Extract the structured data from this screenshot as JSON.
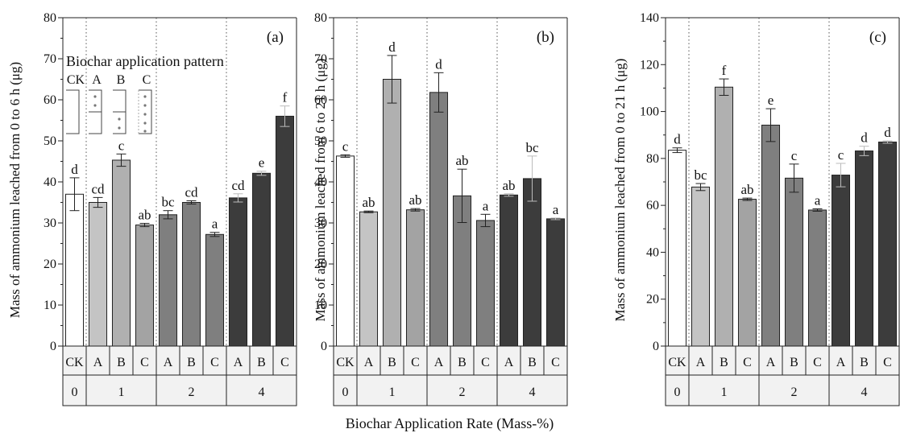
{
  "figure": {
    "xlabel": "Biochar Application Rate (Mass-%)"
  },
  "legend": {
    "title": "Biochar application pattern",
    "labels": [
      "CK",
      "A",
      "B",
      "C"
    ]
  },
  "colors": {
    "CK": "#ffffff",
    "A": "#c4c4c4",
    "B": "#b0b0b0",
    "C": "#a3a3a3",
    "rate2": "#7f7f7f",
    "rate4": "#3c3c3c",
    "table_bg": "#f2f2f2"
  },
  "chart_data": [
    {
      "type": "bar",
      "panel": "(a)",
      "ylabel": "Mass of ammonium leached from 0 to 6 h (μg)",
      "ylim": [
        0,
        80
      ],
      "yticks": [
        0,
        10,
        20,
        30,
        40,
        50,
        60,
        70,
        80
      ],
      "categories": [
        "CK",
        "A",
        "B",
        "C",
        "A",
        "B",
        "C",
        "A",
        "B",
        "C"
      ],
      "rates": [
        "0",
        "1",
        "1",
        "1",
        "2",
        "2",
        "2",
        "4",
        "4",
        "4"
      ],
      "rate_groups": [
        "0",
        "1",
        "2",
        "4"
      ],
      "values": [
        37,
        35,
        45.3,
        29.5,
        32,
        35,
        27.2,
        36.1,
        42.1,
        56
      ],
      "errors": [
        4,
        1.2,
        1.5,
        0.4,
        1.0,
        0.4,
        0.5,
        1.0,
        0.5,
        2.5
      ],
      "letters": [
        "d",
        "cd",
        "c",
        "ab",
        "bc",
        "cd",
        "a",
        "cd",
        "e",
        "f"
      ]
    },
    {
      "type": "bar",
      "panel": "(b)",
      "ylabel": "Mass of ammonium leached from 6 to 21 h (μg)",
      "ylim": [
        0,
        80
      ],
      "yticks": [
        0,
        10,
        20,
        30,
        40,
        50,
        60,
        70,
        80
      ],
      "categories": [
        "CK",
        "A",
        "B",
        "C",
        "A",
        "B",
        "C",
        "A",
        "B",
        "C"
      ],
      "rates": [
        "0",
        "1",
        "1",
        "1",
        "2",
        "2",
        "2",
        "4",
        "4",
        "4"
      ],
      "rate_groups": [
        "0",
        "1",
        "2",
        "4"
      ],
      "values": [
        46.3,
        32.7,
        65,
        33.2,
        61.8,
        36.6,
        30.6,
        36.8,
        40.8,
        31
      ],
      "errors": [
        0.3,
        0.2,
        5.8,
        0.3,
        4.8,
        6.5,
        1.5,
        0.3,
        5.5,
        0.2
      ],
      "letters": [
        "c",
        "ab",
        "d",
        "ab",
        "d",
        "ab",
        "a",
        "ab",
        "bc",
        "a"
      ]
    },
    {
      "type": "bar",
      "panel": "(c)",
      "ylabel": "Mass of ammonium leached from 0 to 21 h (μg)",
      "ylim": [
        0,
        140
      ],
      "yticks": [
        0,
        20,
        40,
        60,
        80,
        100,
        120,
        140
      ],
      "categories": [
        "CK",
        "A",
        "B",
        "C",
        "A",
        "B",
        "C",
        "A",
        "B",
        "C"
      ],
      "rates": [
        "0",
        "1",
        "1",
        "1",
        "2",
        "2",
        "2",
        "4",
        "4",
        "4"
      ],
      "rate_groups": [
        "0",
        "1",
        "2",
        "4"
      ],
      "values": [
        83.5,
        67.8,
        110.4,
        62.6,
        94.2,
        71.6,
        58,
        72.9,
        83.2,
        87
      ],
      "errors": [
        1.0,
        1.5,
        3.5,
        0.5,
        7.0,
        6.0,
        0.5,
        5.0,
        2.0,
        0.5
      ],
      "letters": [
        "d",
        "bc",
        "f",
        "ab",
        "e",
        "c",
        "a",
        "c",
        "d",
        "d"
      ]
    }
  ]
}
